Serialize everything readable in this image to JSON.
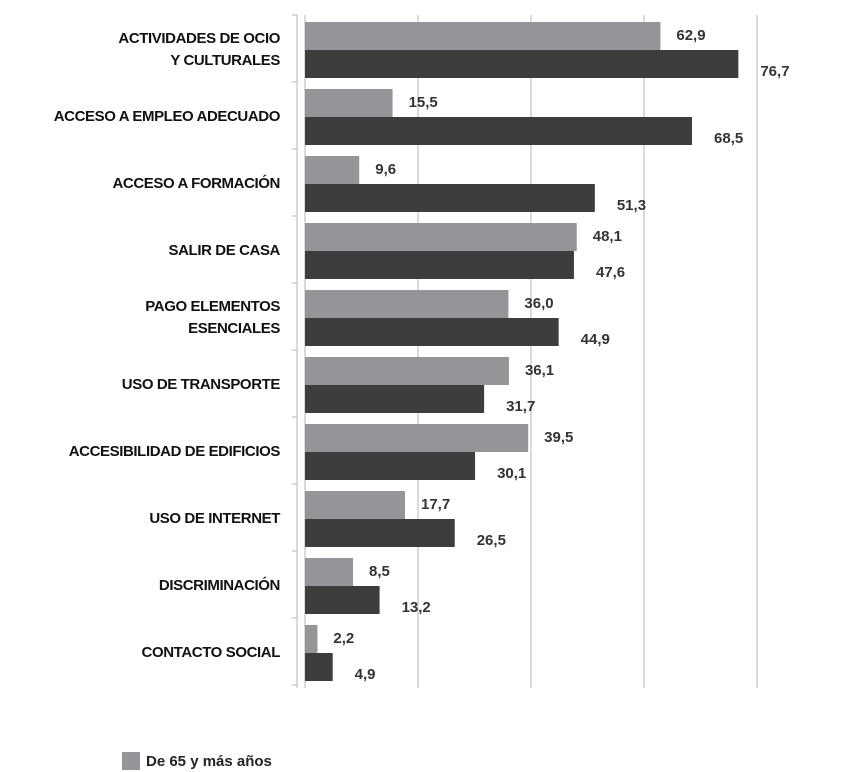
{
  "chart_data": {
    "type": "hbar",
    "categories": [
      "ACTIVIDADES DE OCIO\nY CULTURALES",
      "ACCESO A EMPLEO ADECUADO",
      "ACCESO A FORMACIÓN",
      "SALIR DE CASA",
      "PAGO ELEMENTOS\nESENCIALES",
      "USO DE TRANSPORTE",
      "ACCESIBILIDAD DE EDIFICIOS",
      "USO DE INTERNET",
      "DISCRIMINACIÓN",
      "CONTACTO SOCIAL"
    ],
    "series": [
      {
        "name": "De 65 y más años",
        "color": "#939598",
        "values": [
          62.9,
          15.5,
          9.6,
          48.1,
          36.0,
          36.1,
          39.5,
          17.7,
          8.5,
          2.2
        ],
        "value_labels": [
          "62,9",
          "15,5",
          "9,6",
          "48,1",
          "36,0",
          "36,1",
          "39,5",
          "17,7",
          "8,5",
          "2,2"
        ]
      },
      {
        "color": "#3d3d3d",
        "values": [
          76.7,
          68.5,
          51.3,
          47.6,
          44.9,
          31.7,
          30.1,
          26.5,
          13.2,
          4.9
        ],
        "value_labels": [
          "76,7",
          "68,5",
          "51,3",
          "47,6",
          "44,9",
          "31,7",
          "30,1",
          "26,5",
          "13,2",
          "4,9"
        ]
      }
    ],
    "xlim": [
      0,
      80
    ],
    "xticks": [
      0,
      20,
      40,
      60,
      80
    ],
    "grid": true
  }
}
